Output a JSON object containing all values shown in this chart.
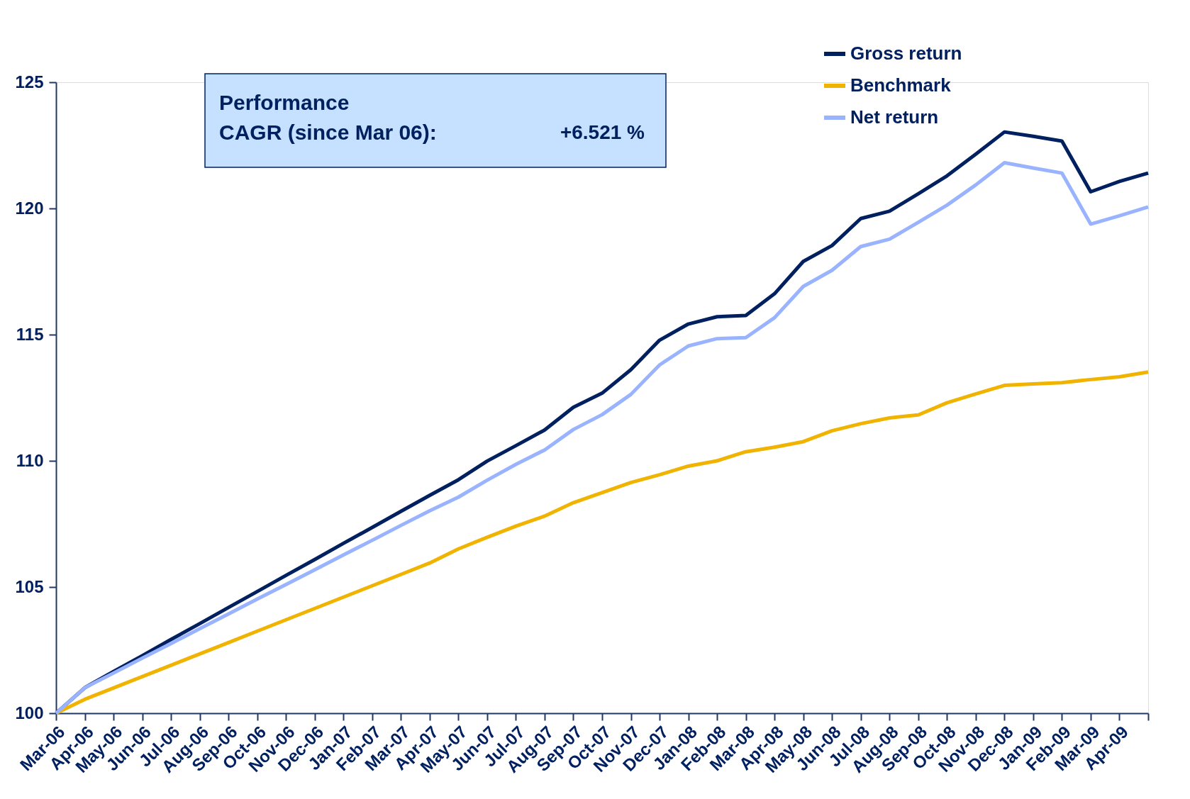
{
  "chart_data": {
    "type": "line",
    "categories": [
      "Mar-06",
      "Apr-06",
      "May-06",
      "Jun-06",
      "Jul-06",
      "Aug-06",
      "Sep-06",
      "Oct-06",
      "Nov-06",
      "Dec-06",
      "Jan-07",
      "Feb-07",
      "Mar-07",
      "Apr-07",
      "May-07",
      "Jun-07",
      "Jul-07",
      "Aug-07",
      "Sep-07",
      "Oct-07",
      "Nov-07",
      "Dec-07",
      "Jan-08",
      "Feb-08",
      "Mar-08",
      "Apr-08",
      "May-08",
      "Jun-08",
      "Jul-08",
      "Aug-08",
      "Sep-08",
      "Oct-08",
      "Nov-08",
      "Dec-08",
      "Jan-09",
      "Feb-09",
      "Mar-09",
      "Apr-09",
      null
    ],
    "series": [
      {
        "name": "Gross return",
        "color": "#002060",
        "values": [
          100,
          101.01,
          101.65,
          102.28,
          102.92,
          103.55,
          104.19,
          104.82,
          105.46,
          106.09,
          106.73,
          107.36,
          108.0,
          108.63,
          109.25,
          109.99,
          110.6,
          111.22,
          112.12,
          112.68,
          113.61,
          114.78,
          115.42,
          115.71,
          115.76,
          116.62,
          117.9,
          118.53,
          119.6,
          119.89,
          120.58,
          121.29,
          122.15,
          123.03,
          122.86,
          122.67,
          120.66,
          121.07,
          121.4
        ]
      },
      {
        "name": "Benchmark",
        "color": "#f0b400",
        "values": [
          100,
          100.55,
          101.0,
          101.45,
          101.9,
          102.35,
          102.8,
          103.25,
          103.7,
          104.15,
          104.6,
          105.05,
          105.5,
          105.95,
          106.51,
          106.97,
          107.41,
          107.81,
          108.34,
          108.74,
          109.14,
          109.45,
          109.79,
          110.0,
          110.36,
          110.54,
          110.76,
          111.19,
          111.47,
          111.7,
          111.82,
          112.3,
          112.65,
          112.99,
          113.05,
          113.1,
          113.22,
          113.33,
          113.52
        ]
      },
      {
        "name": "Net return",
        "color": "#99b3ff",
        "values": [
          100,
          101.01,
          101.59,
          102.18,
          102.76,
          103.35,
          103.93,
          104.52,
          105.1,
          105.68,
          106.27,
          106.85,
          107.44,
          108.02,
          108.56,
          109.23,
          109.86,
          110.43,
          111.24,
          111.83,
          112.63,
          113.8,
          114.55,
          114.84,
          114.88,
          115.67,
          116.91,
          117.55,
          118.49,
          118.78,
          119.45,
          120.13,
          120.93,
          121.81,
          121.6,
          121.4,
          119.38,
          119.71,
          120.06
        ]
      }
    ],
    "ylim": [
      100,
      125
    ],
    "yticks": [
      100,
      105,
      110,
      115,
      120,
      125
    ],
    "annotations": [
      "Performance",
      "CAGR (since Mar 06):",
      "+6.521 %"
    ],
    "legend": "top right",
    "grid": false,
    "marker": "none",
    "line_style": "solid"
  }
}
